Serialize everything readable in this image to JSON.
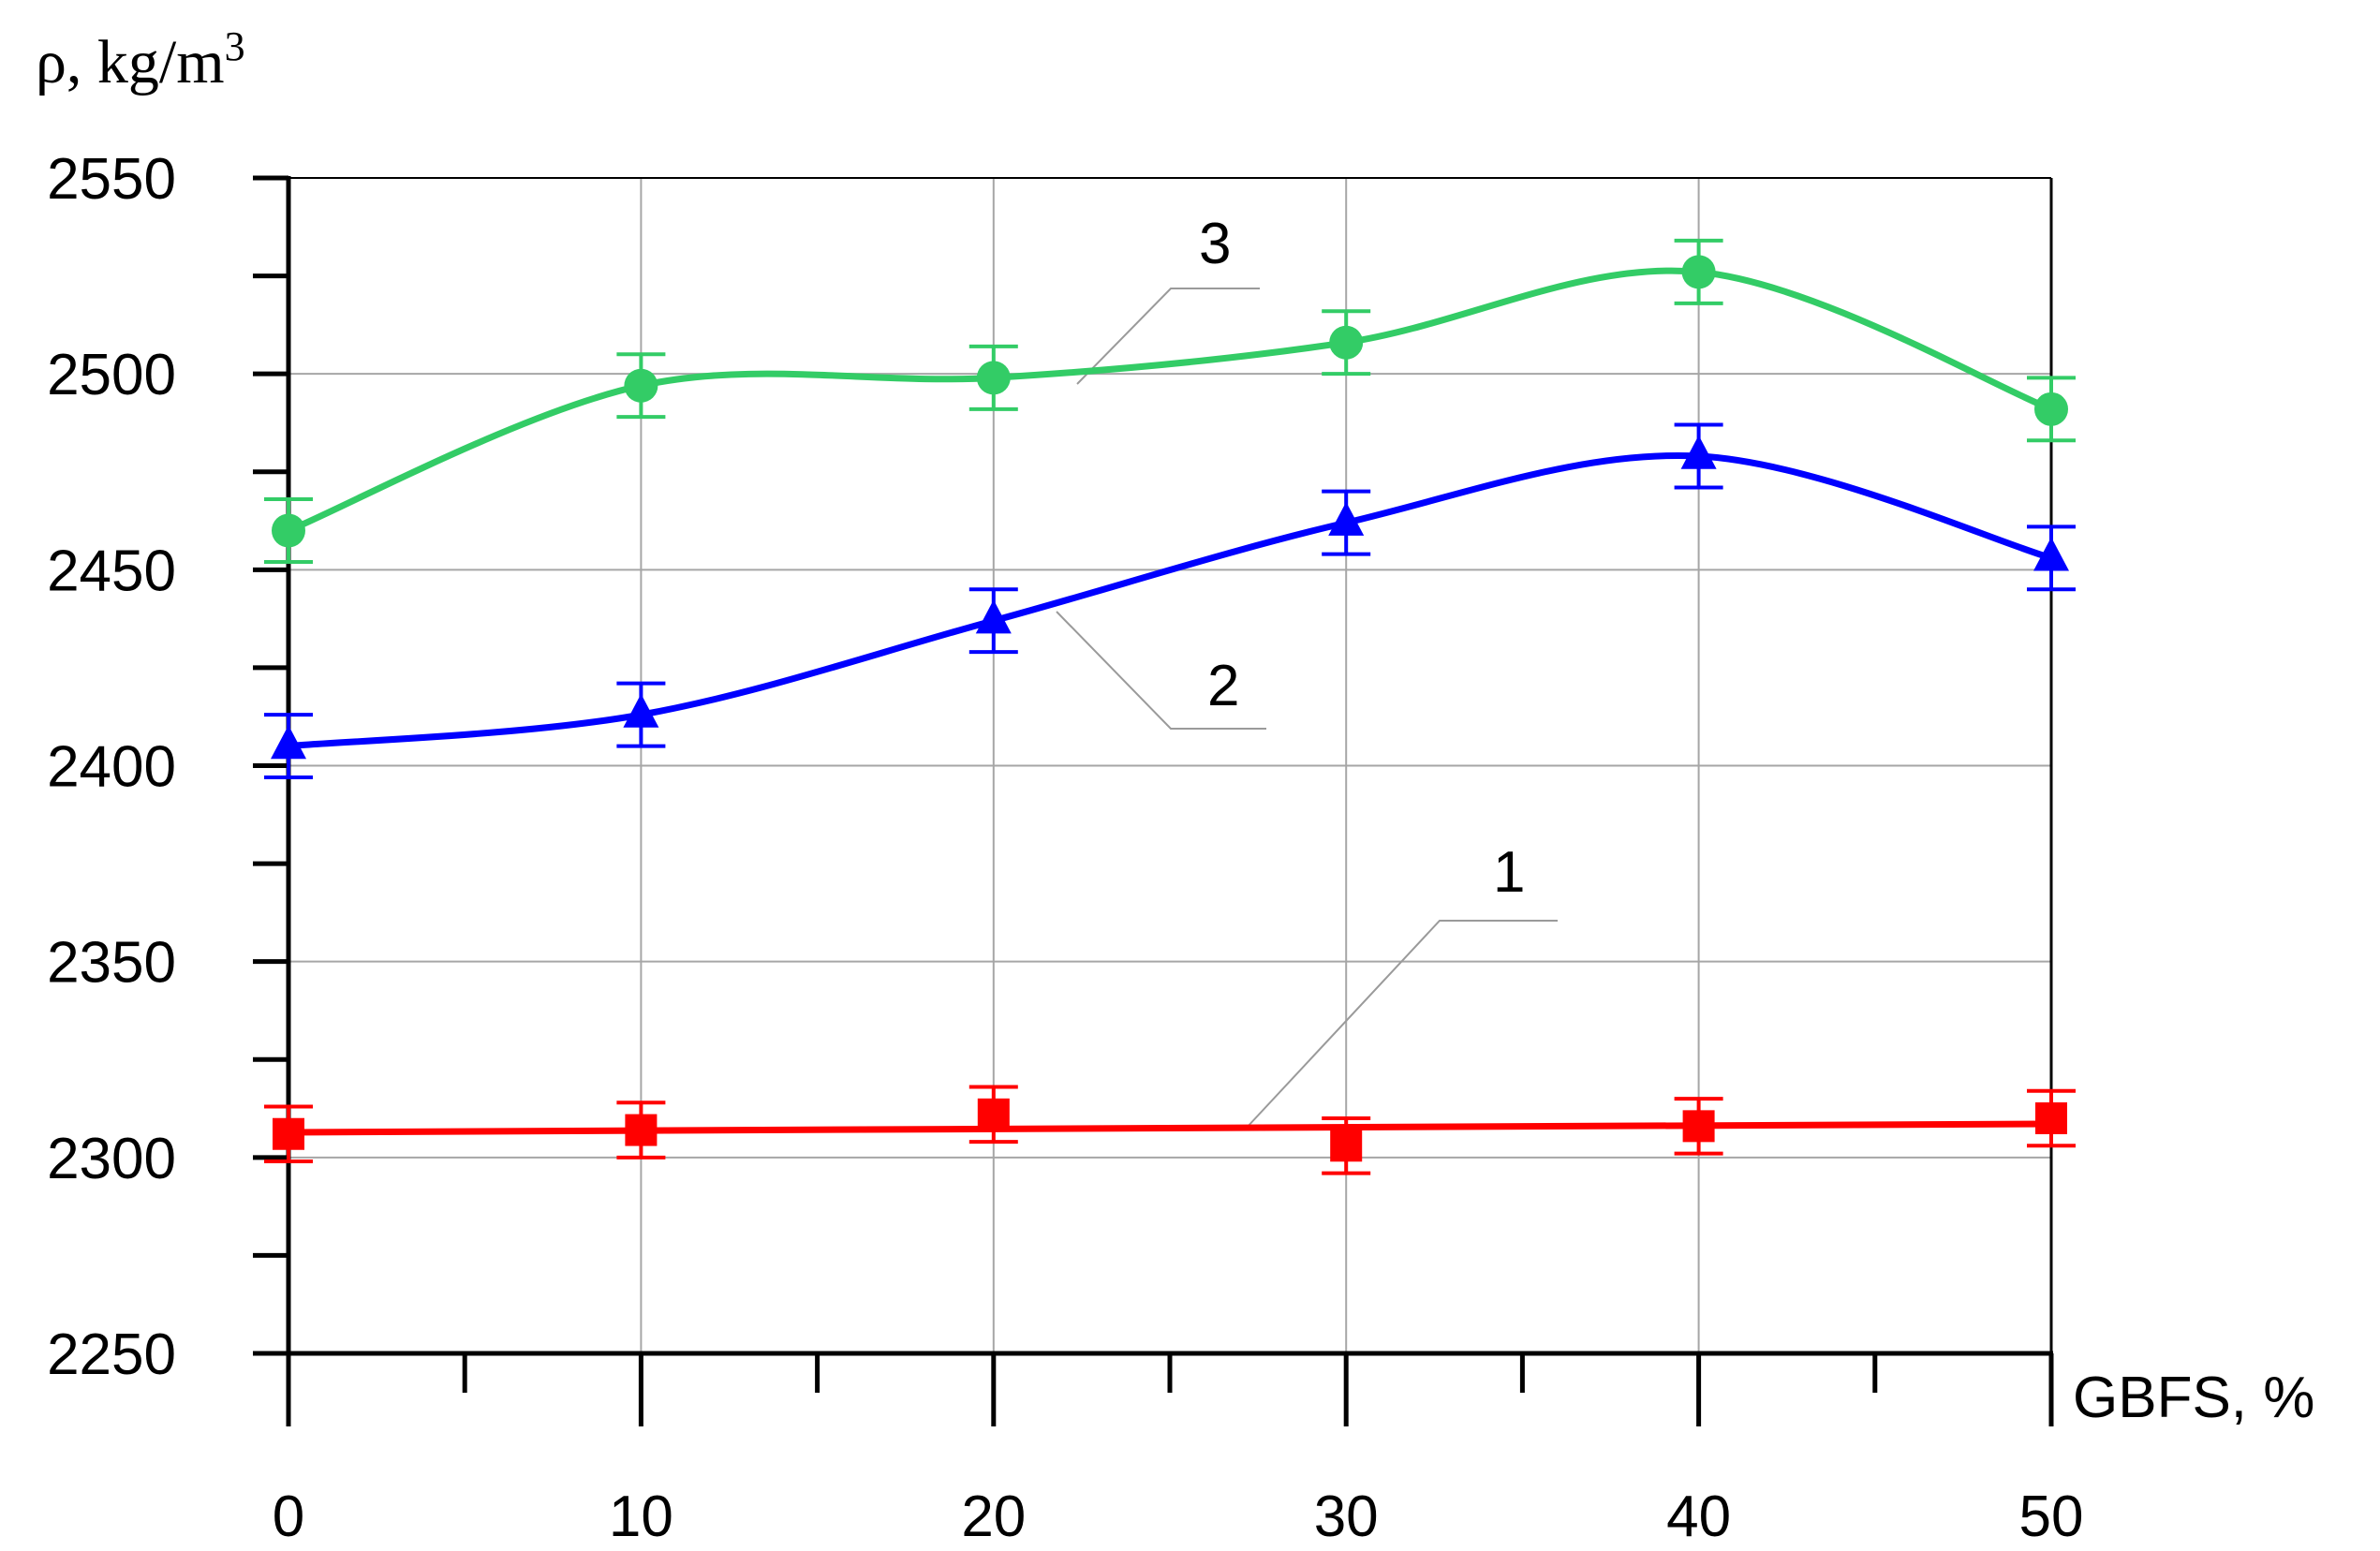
{
  "chart_data": {
    "type": "line",
    "ylabel": "ρ, kg/m",
    "ylabel_sup": "3",
    "xlabel": "GBFS, %",
    "xlim": [
      0,
      50
    ],
    "ylim": [
      2250,
      2550
    ],
    "x_ticks": [
      0,
      10,
      20,
      30,
      40,
      50
    ],
    "x_minor_ticks": [
      5,
      15,
      25,
      35,
      45
    ],
    "y_ticks": [
      2250,
      2300,
      2350,
      2400,
      2450,
      2500,
      2550
    ],
    "y_minor_ticks": [
      2275,
      2325,
      2375,
      2425,
      2475,
      2525
    ],
    "grid": true,
    "x": [
      0,
      10,
      20,
      30,
      40,
      50
    ],
    "series": [
      {
        "label": "1",
        "color": "#ff0000",
        "marker": "square",
        "values": [
          2306,
          2307,
          2311,
          2303,
          2308,
          2310
        ],
        "error": [
          7,
          7,
          7,
          7,
          7,
          7
        ],
        "fit": "linear"
      },
      {
        "label": "2",
        "color": "#0000ff",
        "marker": "triangle",
        "values": [
          2405,
          2413,
          2437,
          2462,
          2479,
          2453
        ],
        "error": [
          8,
          8,
          8,
          8,
          8,
          8
        ],
        "fit": "smooth"
      },
      {
        "label": "3",
        "color": "#33cc66",
        "marker": "circle",
        "values": [
          2460,
          2497,
          2499,
          2508,
          2526,
          2491
        ],
        "error": [
          8,
          8,
          8,
          8,
          8,
          8
        ],
        "fit": "smooth"
      }
    ]
  }
}
